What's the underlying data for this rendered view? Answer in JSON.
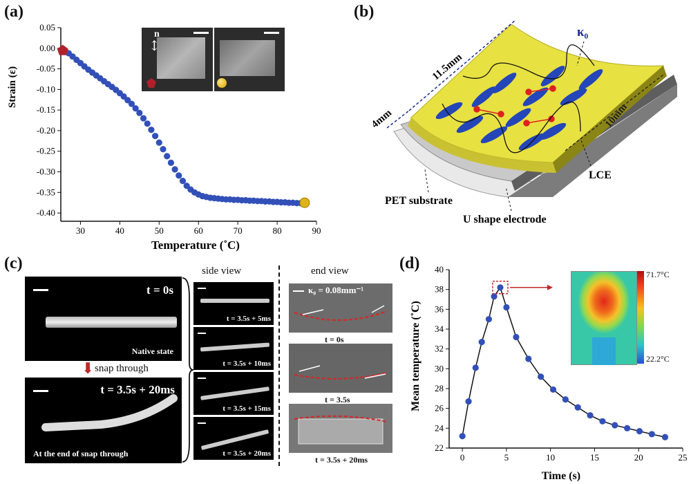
{
  "panel_labels": {
    "a": "(a)",
    "b": "(b)",
    "c": "(c)",
    "d": "(d)"
  },
  "panel_a": {
    "ylabel": "Strain (ε)",
    "xlabel": "Temperature (˚C)",
    "inset_label_n": "n"
  },
  "panel_b": {
    "dim_length": "11.5mm",
    "dim_width": "4mm",
    "dim_depth": "10mm",
    "kappa": "κ₀",
    "label_lce": "LCE",
    "label_pet": "PET substrate",
    "label_electrode": "U shape electrode"
  },
  "panel_c": {
    "native_time": "t = 0s",
    "native_caption": "Native state",
    "snap_label": "snap through",
    "end_time": "t = 3.5s + 20ms",
    "end_caption": "At the end of snap through",
    "side_view_title": "side view",
    "side_frames": [
      "t = 3.5s + 5ms",
      "t = 3.5s + 10ms",
      "t = 3.5s + 15ms",
      "t = 3.5s + 20ms"
    ],
    "end_view_title": "end view",
    "kappa_value": "κ₀ = 0.08mm⁻¹",
    "end_frames": [
      "t = 0s",
      "t = 3.5s",
      "t = 3.5s + 20ms"
    ]
  },
  "panel_d": {
    "colorbar_max": "71.7°C",
    "colorbar_min": "22.2°C"
  },
  "chart_data": [
    {
      "type": "scatter",
      "title": "",
      "xlabel": "Temperature (˚C)",
      "ylabel": "Strain (ε)",
      "xlim": [
        25,
        90
      ],
      "ylim": [
        -0.42,
        0.05
      ],
      "xticks": [
        30,
        40,
        50,
        60,
        70,
        80,
        90
      ],
      "yticks": [
        0.05,
        0.0,
        -0.05,
        -0.1,
        -0.15,
        -0.2,
        -0.25,
        -0.3,
        -0.35,
        -0.4
      ],
      "series": [
        {
          "name": "strain",
          "x": [
            26,
            27,
            28,
            29,
            30,
            31,
            32,
            33,
            34,
            35,
            36,
            37,
            38,
            39,
            40,
            41,
            42,
            43,
            44,
            45,
            46,
            47,
            48,
            49,
            50,
            51,
            52,
            53,
            54,
            55,
            56,
            57,
            58,
            59,
            60,
            61,
            62,
            63,
            64,
            65,
            66,
            67,
            68,
            69,
            70,
            71,
            72,
            73,
            74,
            75,
            76,
            77,
            78,
            79,
            80,
            81,
            82,
            83,
            84,
            85,
            86
          ],
          "y": [
            -0.005,
            -0.012,
            -0.02,
            -0.028,
            -0.036,
            -0.044,
            -0.052,
            -0.059,
            -0.066,
            -0.073,
            -0.08,
            -0.087,
            -0.094,
            -0.101,
            -0.109,
            -0.117,
            -0.126,
            -0.135,
            -0.146,
            -0.157,
            -0.17,
            -0.183,
            -0.198,
            -0.213,
            -0.229,
            -0.245,
            -0.262,
            -0.278,
            -0.294,
            -0.309,
            -0.322,
            -0.334,
            -0.343,
            -0.35,
            -0.355,
            -0.359,
            -0.361,
            -0.363,
            -0.364,
            -0.365,
            -0.366,
            -0.367,
            -0.367,
            -0.368,
            -0.368,
            -0.369,
            -0.369,
            -0.37,
            -0.37,
            -0.371,
            -0.371,
            -0.372,
            -0.372,
            -0.373,
            -0.373,
            -0.374,
            -0.374,
            -0.375,
            -0.375,
            -0.376,
            -0.376
          ]
        }
      ],
      "markers": [
        {
          "name": "start",
          "x": 25.5,
          "y": -0.005
        },
        {
          "name": "end",
          "x": 87,
          "y": -0.375
        }
      ]
    },
    {
      "type": "line",
      "title": "",
      "xlabel": "Time (s)",
      "ylabel": "Mean temperature (˚C)",
      "xlim": [
        -1.5,
        25
      ],
      "ylim": [
        22,
        40
      ],
      "xticks": [
        0,
        5,
        10,
        15,
        20,
        25
      ],
      "yticks": [
        22,
        24,
        26,
        28,
        30,
        32,
        34,
        36,
        38,
        40
      ],
      "series": [
        {
          "name": "mean temperature",
          "x": [
            0,
            0.7,
            1.5,
            2.2,
            3.0,
            3.6,
            4.3,
            5.0,
            6.1,
            7.5,
            8.9,
            10.3,
            11.7,
            13.1,
            14.5,
            15.9,
            17.3,
            18.7,
            20.1,
            21.5,
            23.0
          ],
          "y": [
            23.2,
            26.7,
            30.1,
            32.7,
            35.0,
            37.3,
            38.2,
            36.2,
            33.2,
            31.0,
            29.2,
            27.9,
            26.9,
            26.1,
            25.3,
            24.7,
            24.3,
            24.0,
            23.7,
            23.4,
            23.1
          ]
        }
      ]
    }
  ]
}
